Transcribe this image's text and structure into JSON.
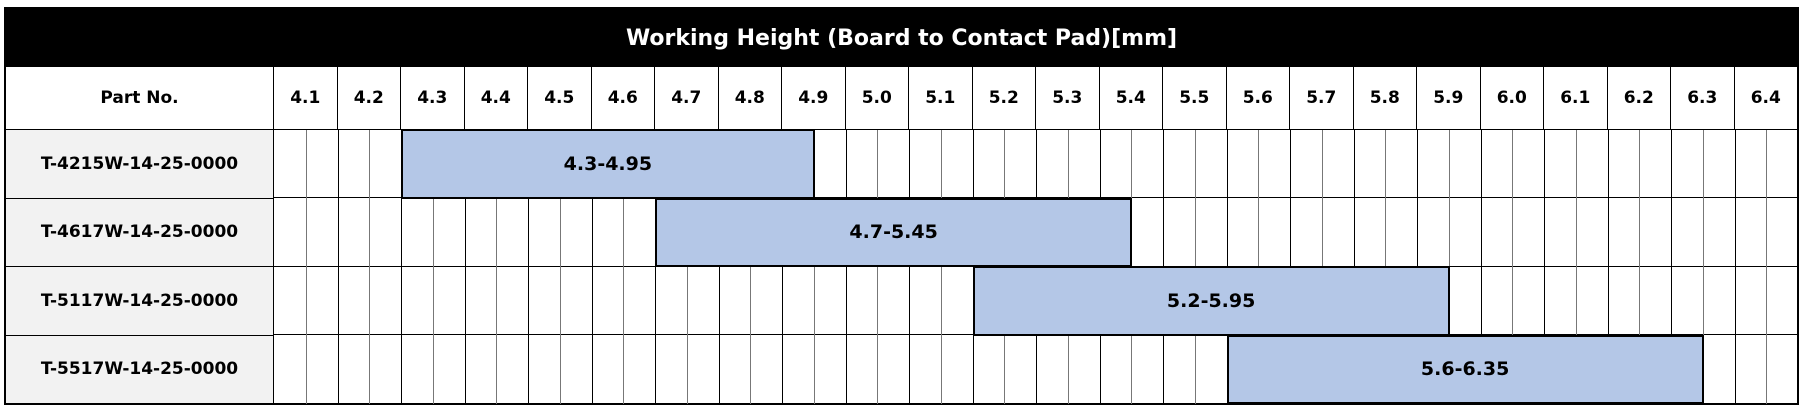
{
  "chart_data": {
    "type": "table",
    "title": "Working Height (Board to Contact Pad)[mm]",
    "row_header": "Part No.",
    "columns": [
      "4.1",
      "4.2",
      "4.3",
      "4.4",
      "4.5",
      "4.6",
      "4.7",
      "4.8",
      "4.9",
      "5.0",
      "5.1",
      "5.2",
      "5.3",
      "5.4",
      "5.5",
      "5.6",
      "5.7",
      "5.8",
      "5.9",
      "6.0",
      "6.1",
      "6.2",
      "6.3",
      "6.4"
    ],
    "rows": [
      {
        "part": "T-4215W-14-25-0000",
        "start": 4.3,
        "end": 4.95,
        "label": "4.3-4.95"
      },
      {
        "part": "T-4617W-14-25-0000",
        "start": 4.7,
        "end": 5.45,
        "label": "4.7-5.45"
      },
      {
        "part": "T-5117W-14-25-0000",
        "start": 5.2,
        "end": 5.95,
        "label": "5.2-5.95"
      },
      {
        "part": "T-5517W-14-25-0000",
        "start": 5.6,
        "end": 6.35,
        "label": "5.6-6.35"
      }
    ],
    "colors": {
      "bar": "#b4c7e7",
      "title_bg": "#000000",
      "part_bg": "#f2f2f2"
    }
  }
}
